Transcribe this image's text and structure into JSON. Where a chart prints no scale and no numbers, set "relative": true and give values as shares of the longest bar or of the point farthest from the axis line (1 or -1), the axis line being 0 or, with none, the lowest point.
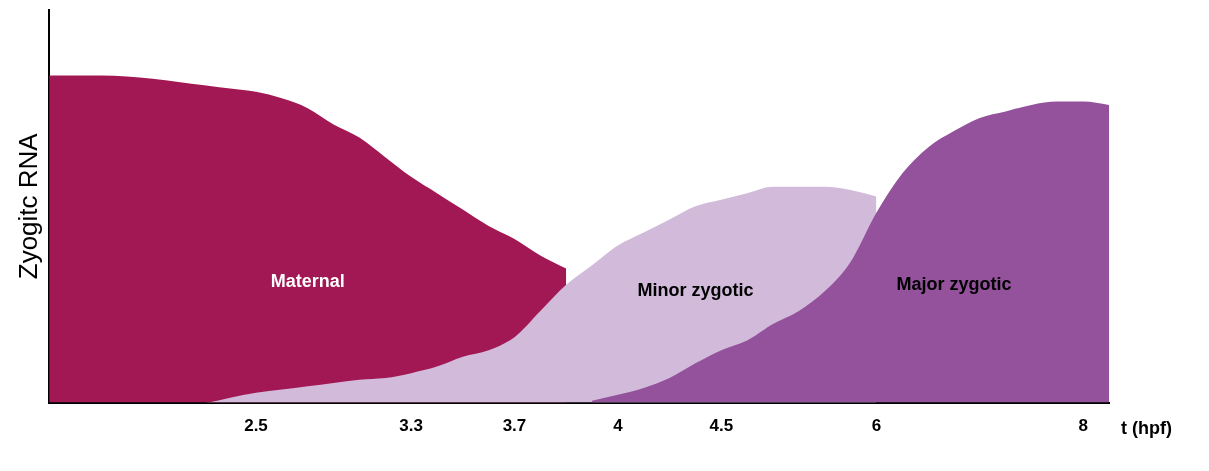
{
  "chart_data": {
    "type": "area",
    "relative": true,
    "ylabel": "Zyogitc RNA",
    "xlabel": "t (hpf)",
    "legend": false,
    "grid": false,
    "categories": [
      null,
      null,
      null,
      null,
      null,
      null,
      null,
      null,
      "2.5",
      null,
      null,
      null,
      null,
      null,
      "3.3",
      null,
      null,
      null,
      "3.7",
      null,
      null,
      null,
      "4",
      null,
      null,
      null,
      "4.5",
      null,
      null,
      null,
      null,
      null,
      "6",
      null,
      null,
      null,
      null,
      null,
      null,
      null,
      "8",
      null
    ],
    "series": [
      {
        "name": "Maternal",
        "color": "#a21855",
        "values": [
          1.0,
          1.0,
          1.0,
          0.997,
          0.99,
          0.98,
          0.97,
          0.96,
          0.95,
          0.93,
          0.9,
          0.85,
          0.81,
          0.75,
          0.69,
          0.64,
          0.59,
          0.54,
          0.5,
          0.45,
          0.41,
          null,
          null,
          null,
          null,
          null,
          null,
          null,
          null,
          null,
          null,
          null,
          null,
          null,
          null,
          null,
          null,
          null,
          null,
          null,
          null,
          null
        ]
      },
      {
        "name": "Minor zygotic",
        "color": "#d1bada",
        "values": [
          0,
          0,
          0,
          0,
          0,
          0,
          0,
          0.015,
          0.03,
          0.04,
          0.05,
          0.06,
          0.07,
          0.075,
          0.09,
          0.11,
          0.14,
          0.16,
          0.2,
          0.28,
          0.36,
          0.42,
          0.48,
          0.52,
          0.56,
          0.6,
          0.62,
          0.64,
          0.66,
          0.66,
          0.66,
          0.65,
          0.63,
          null,
          null,
          null,
          null,
          null,
          null,
          null,
          null,
          null
        ]
      },
      {
        "name": "Major zygotic",
        "color": "#93529b",
        "values": [
          null,
          null,
          null,
          null,
          null,
          null,
          null,
          null,
          null,
          null,
          null,
          null,
          null,
          null,
          null,
          null,
          null,
          null,
          null,
          null,
          null,
          0.006,
          0.024,
          0.045,
          0.075,
          0.12,
          0.16,
          0.19,
          0.24,
          0.28,
          0.34,
          0.43,
          0.58,
          0.7,
          0.78,
          0.83,
          0.87,
          0.89,
          0.91,
          0.92,
          0.92,
          0.91
        ]
      }
    ]
  }
}
